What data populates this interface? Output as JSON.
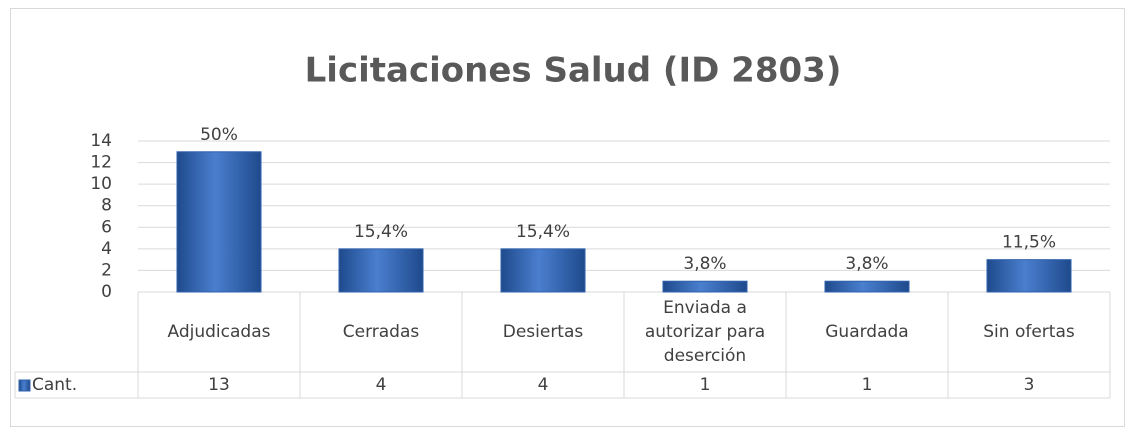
{
  "chart_data": {
    "type": "bar",
    "title": "Licitaciones Salud (ID 2803)",
    "categories": [
      "Adjudicadas",
      "Cerradas",
      "Desiertas",
      "Enviada a autorizar para deserción",
      "Guardada",
      "Sin ofertas"
    ],
    "series": [
      {
        "name": "Cant.",
        "color": "#2f62ad",
        "values": [
          13,
          4,
          4,
          1,
          1,
          3
        ]
      }
    ],
    "data_labels": [
      {
        "value": 50,
        "label": "50%"
      },
      {
        "value": 15.4,
        "label": "15,4%"
      },
      {
        "value": 15.4,
        "label": "15,4%"
      },
      {
        "value": 3.8,
        "label": "3,8%"
      },
      {
        "value": 3.8,
        "label": "3,8%"
      },
      {
        "value": 11.5,
        "label": "11,5%"
      }
    ],
    "ylim": [
      0,
      14
    ],
    "yticks": [
      0,
      2,
      4,
      6,
      8,
      10,
      12,
      14
    ],
    "grid": true,
    "legend": "bottom",
    "data_table": true
  }
}
